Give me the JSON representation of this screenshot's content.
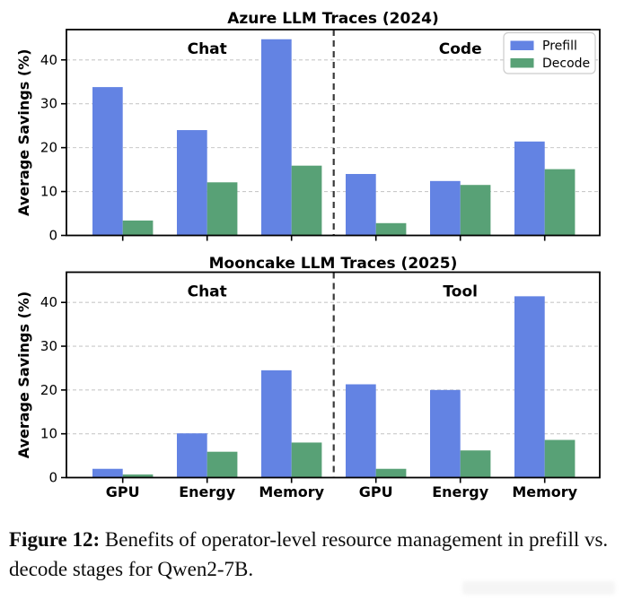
{
  "figure": {
    "kind": "two stacked grouped bar charts from a research paper"
  },
  "caption": {
    "prefix": "Figure 12:",
    "body": " Benefits of operator-level resource management in prefill vs. decode stages for Qwen2-7B."
  },
  "colors": {
    "prefill": "#6383e3",
    "decode": "#58a176",
    "grid": "#c9c9c9",
    "spine": "#000000",
    "divider": "#3a3a3a",
    "legend_border": "#cccccc",
    "text": "#000000"
  },
  "chart_data": [
    {
      "type": "bar",
      "title": "Azure LLM Traces (2024)",
      "ylabel": "Average Savings (%)",
      "xlabel": "",
      "ylim": [
        0,
        46.9
      ],
      "yticks": [
        0,
        10,
        20,
        30,
        40
      ],
      "grid": "dashed horizontal",
      "categories": [
        "GPU",
        "Energy",
        "Memory",
        "GPU",
        "Energy",
        "Memory"
      ],
      "x_labels_visible": false,
      "sections": [
        {
          "label": "Chat",
          "center_group": 1
        },
        {
          "label": "Code",
          "center_group": 4
        }
      ],
      "divider_after_group": 2,
      "legend": {
        "visible": true,
        "position": "upper right"
      },
      "series": [
        {
          "name": "Prefill",
          "color": "#6383e3",
          "values": [
            33.8,
            24.0,
            44.7,
            14.0,
            12.4,
            21.4
          ]
        },
        {
          "name": "Decode",
          "color": "#58a176",
          "values": [
            3.4,
            12.1,
            15.9,
            2.8,
            11.5,
            15.1
          ]
        }
      ]
    },
    {
      "type": "bar",
      "title": "Mooncake LLM Traces (2025)",
      "ylabel": "Average Savings (%)",
      "xlabel": "",
      "ylim": [
        0,
        46.9
      ],
      "yticks": [
        0,
        10,
        20,
        30,
        40
      ],
      "grid": "dashed horizontal",
      "categories": [
        "GPU",
        "Energy",
        "Memory",
        "GPU",
        "Energy",
        "Memory"
      ],
      "x_labels_visible": true,
      "sections": [
        {
          "label": "Chat",
          "center_group": 1
        },
        {
          "label": "Tool",
          "center_group": 4
        }
      ],
      "divider_after_group": 2,
      "legend": {
        "visible": false,
        "position": "upper right"
      },
      "series": [
        {
          "name": "Prefill",
          "color": "#6383e3",
          "values": [
            2.0,
            10.1,
            24.5,
            21.3,
            20.0,
            41.4
          ]
        },
        {
          "name": "Decode",
          "color": "#58a176",
          "values": [
            0.7,
            5.9,
            8.0,
            2.0,
            6.2,
            8.6
          ]
        }
      ]
    }
  ]
}
